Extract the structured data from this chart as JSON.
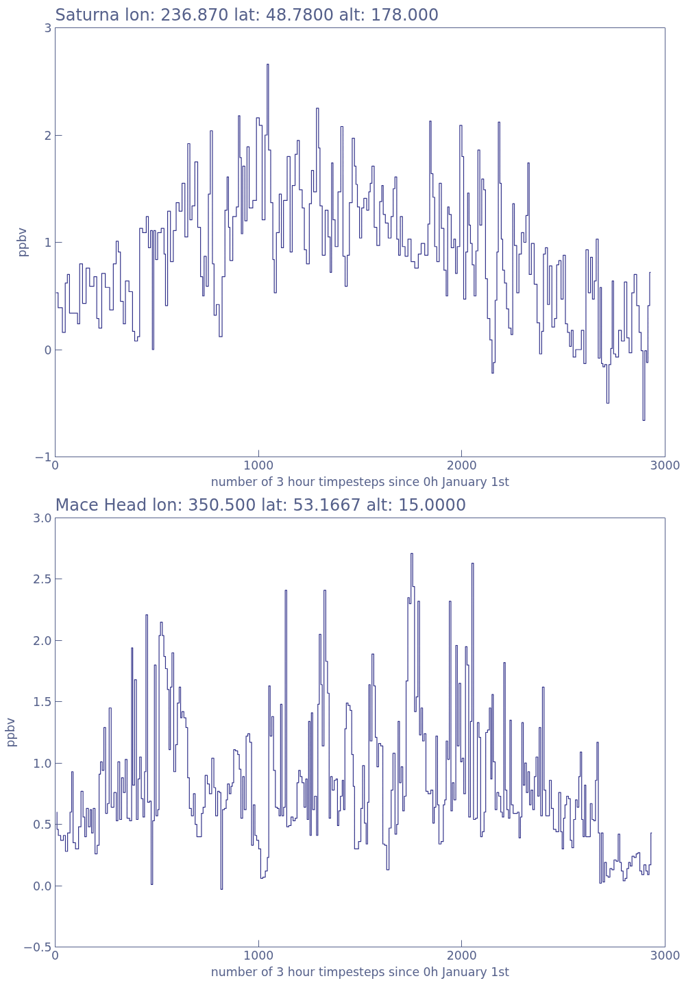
{
  "chart_data": [
    {
      "type": "step",
      "title": "Saturna  lon: 236.870  lat: 48.7800  alt: 178.000",
      "xlabel": "number of 3 hour timpesteps since 0h January 1st",
      "ylabel": "ppbv",
      "xlim": [
        0,
        3000
      ],
      "xticks": [
        0,
        1000,
        2000,
        3000
      ],
      "ylim": [
        -1,
        3
      ],
      "yticks": [
        -1,
        0,
        1,
        2,
        3
      ],
      "grid": false,
      "line_style": "solid",
      "series": [
        {
          "color": "#33338a",
          "x": [
            4,
            25,
            46,
            53,
            67,
            74,
            103,
            117,
            124,
            145,
            159,
            180,
            201,
            208,
            222,
            236,
            257,
            279,
            293,
            307,
            314,
            328,
            342,
            349,
            377,
            384,
            398,
            412,
            419,
            441,
            455,
            462,
            476,
            480,
            490,
            497,
            511,
            532,
            539,
            546,
            560,
            574,
            588,
            602,
            617,
            631,
            645,
            659,
            666,
            680,
            694,
            708,
            722,
            729,
            736,
            750,
            757,
            769,
            778,
            785,
            800,
            814,
            828,
            842,
            849,
            856,
            863,
            884,
            898,
            905,
            912,
            919,
            926,
            940,
            947,
            961,
            983,
            997,
            1011,
            1025,
            1039,
            1046,
            1053,
            1067,
            1074,
            1081,
            1095,
            1109,
            1116,
            1130,
            1152,
            1159,
            1173,
            1187,
            1194,
            1208,
            1222,
            1229,
            1243,
            1257,
            1264,
            1278,
            1292,
            1299,
            1306,
            1321,
            1335,
            1349,
            1356,
            1363,
            1370,
            1384,
            1398,
            1412,
            1419,
            1433,
            1440,
            1454,
            1468,
            1476,
            1483,
            1490,
            1504,
            1511,
            1525,
            1539,
            1546,
            1553,
            1563,
            1575,
            1589,
            1603,
            1610,
            1617,
            1631,
            1645,
            1659,
            1666,
            1676,
            1684,
            1694,
            1701,
            1715,
            1727,
            1743,
            1758,
            1779,
            1793,
            1807,
            1828,
            1839,
            1845,
            1853,
            1863,
            1870,
            1884,
            1894,
            1905,
            1919,
            1927,
            1934,
            1941,
            1955,
            1966,
            1972,
            1983,
            1997,
            2004,
            2014,
            2025,
            2032,
            2039,
            2046,
            2056,
            2065,
            2074,
            2084,
            2093,
            2103,
            2112,
            2121,
            2131,
            2145,
            2152,
            2159,
            2169,
            2176,
            2183,
            2191,
            2197,
            2205,
            2215,
            2225,
            2236,
            2248,
            2253,
            2264,
            2276,
            2286,
            2300,
            2310,
            2321,
            2328,
            2335,
            2349,
            2363,
            2377,
            2388,
            2398,
            2405,
            2417,
            2426,
            2436,
            2450,
            2462,
            2471,
            2483,
            2493,
            2504,
            2515,
            2525,
            2535,
            2542,
            2553,
            2567,
            2581,
            2595,
            2605,
            2616,
            2628,
            2638,
            2647,
            2656,
            2666,
            2676,
            2684,
            2690,
            2698,
            2708,
            2718,
            2729,
            2736,
            2743,
            2750,
            2764,
            2778,
            2792,
            2807,
            2816,
            2830,
            2842,
            2853,
            2867,
            2877,
            2887,
            2895,
            2905,
            2912,
            2919,
            2929
          ],
          "values": [
            0.53,
            0.39,
            0.16,
            0.62,
            0.7,
            0.34,
            0.34,
            0.24,
            0.8,
            0.43,
            0.76,
            0.59,
            0.68,
            0.29,
            0.2,
            0.71,
            0.58,
            0.37,
            0.8,
            1.01,
            0.91,
            0.45,
            0.24,
            0.64,
            0.54,
            0.17,
            0.08,
            0.12,
            1.13,
            1.09,
            1.24,
            0.95,
            1.11,
            0.0,
            1.11,
            0.84,
            1.09,
            1.13,
            0.89,
            0.41,
            1.29,
            0.82,
            1.11,
            1.37,
            1.29,
            1.55,
            1.05,
            1.92,
            1.21,
            1.34,
            1.75,
            1.14,
            0.68,
            0.5,
            0.87,
            0.59,
            1.45,
            2.04,
            0.8,
            0.32,
            0.42,
            0.12,
            0.68,
            1.3,
            1.61,
            1.14,
            0.83,
            1.24,
            1.33,
            2.18,
            1.79,
            1.08,
            1.71,
            1.2,
            1.89,
            1.32,
            1.39,
            2.16,
            2.09,
            1.21,
            2.0,
            2.66,
            1.86,
            1.37,
            0.84,
            0.53,
            1.09,
            1.45,
            0.95,
            1.39,
            1.8,
            0.91,
            1.53,
            1.82,
            1.95,
            1.49,
            1.32,
            0.93,
            0.8,
            1.36,
            1.67,
            1.47,
            2.25,
            1.88,
            1.34,
            0.88,
            1.3,
            1.05,
            0.72,
            1.74,
            1.21,
            0.96,
            1.47,
            2.08,
            0.87,
            0.59,
            0.88,
            1.37,
            1.97,
            1.71,
            1.54,
            1.33,
            1.04,
            1.32,
            1.41,
            1.3,
            1.47,
            1.55,
            1.71,
            1.14,
            0.97,
            1.38,
            1.53,
            1.26,
            1.18,
            1.04,
            1.24,
            1.5,
            1.61,
            1.03,
            0.88,
            1.24,
            0.96,
            0.87,
            1.03,
            0.82,
            0.76,
            0.89,
            0.99,
            0.88,
            1.17,
            2.13,
            1.64,
            1.42,
            0.96,
            0.82,
            1.55,
            1.13,
            0.74,
            0.5,
            1.33,
            1.26,
            0.95,
            1.03,
            0.71,
            0.96,
            2.09,
            1.8,
            0.47,
            0.91,
            1.46,
            1.16,
            0.99,
            0.79,
            0.5,
            0.92,
            1.86,
            1.16,
            1.59,
            1.49,
            0.66,
            0.29,
            0.09,
            -0.22,
            -0.12,
            0.46,
            0.91,
            2.12,
            1.55,
            1.03,
            0.74,
            0.62,
            0.38,
            0.2,
            0.14,
            1.36,
            0.97,
            0.53,
            0.89,
            1.09,
            1.0,
            1.25,
            1.74,
            0.7,
            0.99,
            0.61,
            0.25,
            -0.04,
            0.17,
            0.89,
            0.95,
            0.42,
            0.78,
            0.21,
            0.29,
            0.79,
            0.83,
            0.47,
            0.88,
            0.24,
            0.16,
            0.03,
            0.18,
            -0.07,
            0.0,
            0.0,
            0.18,
            -0.13,
            0.93,
            0.53,
            0.86,
            0.47,
            0.64,
            1.03,
            -0.08,
            0.58,
            -0.13,
            -0.16,
            -0.14,
            -0.5,
            -0.14,
            0.01,
            0.64,
            -0.04,
            -0.07,
            0.18,
            0.08,
            0.63,
            0.11,
            -0.03,
            0.53,
            0.7,
            0.41,
            0.16,
            -0.01,
            -0.66,
            -0.01,
            -0.12,
            0.41,
            0.72
          ]
        }
      ]
    },
    {
      "type": "step",
      "title": "Mace Head  lon: 350.500  lat: 53.1667  alt: 15.0000",
      "xlabel": "number of 3 hour timpesteps since 0h January 1st",
      "ylabel": "ppbv",
      "xlim": [
        0,
        3000
      ],
      "xticks": [
        0,
        1000,
        2000,
        3000
      ],
      "ylim": [
        -0.5,
        3
      ],
      "yticks": [
        {
          "value": -0.5,
          "label": "−0.5"
        },
        {
          "value": 0,
          "label": "0.0"
        },
        {
          "value": 0.5,
          "label": "0.5"
        },
        {
          "value": 1,
          "label": "1.0"
        },
        {
          "value": 1.5,
          "label": "1.5"
        },
        {
          "value": 2,
          "label": "2.0"
        },
        {
          "value": 2.5,
          "label": "2.5"
        },
        {
          "value": 3,
          "label": "3.0"
        }
      ],
      "grid": false,
      "line_style": "solid",
      "series": [
        {
          "color": "#33338a",
          "x": [
            7,
            11,
            20,
            34,
            47,
            54,
            68,
            78,
            84,
            92,
            108,
            122,
            132,
            142,
            149,
            158,
            169,
            176,
            182,
            192,
            200,
            213,
            219,
            227,
            236,
            243,
            253,
            261,
            270,
            281,
            297,
            304,
            313,
            322,
            331,
            340,
            349,
            358,
            374,
            378,
            385,
            396,
            403,
            412,
            419,
            428,
            436,
            443,
            450,
            459,
            469,
            475,
            484,
            492,
            500,
            509,
            513,
            523,
            531,
            538,
            547,
            557,
            563,
            571,
            578,
            588,
            597,
            605,
            615,
            619,
            628,
            638,
            648,
            655,
            665,
            675,
            685,
            692,
            702,
            716,
            723,
            732,
            743,
            754,
            763,
            777,
            784,
            794,
            804,
            811,
            819,
            827,
            838,
            844,
            851,
            862,
            867,
            875,
            881,
            892,
            903,
            908,
            919,
            925,
            935,
            943,
            952,
            962,
            970,
            979,
            986,
            996,
            1006,
            1016,
            1027,
            1040,
            1047,
            1054,
            1061,
            1070,
            1078,
            1088,
            1097,
            1105,
            1112,
            1119,
            1128,
            1135,
            1143,
            1155,
            1165,
            1175,
            1186,
            1193,
            1202,
            1209,
            1219,
            1229,
            1236,
            1243,
            1250,
            1257,
            1263,
            1270,
            1281,
            1290,
            1294,
            1304,
            1310,
            1317,
            1327,
            1335,
            1344,
            1351,
            1358,
            1367,
            1378,
            1385,
            1392,
            1398,
            1408,
            1416,
            1421,
            1429,
            1435,
            1446,
            1455,
            1462,
            1470,
            1475,
            1485,
            1499,
            1508,
            1516,
            1526,
            1533,
            1540,
            1546,
            1553,
            1563,
            1571,
            1578,
            1587,
            1594,
            1608,
            1615,
            1626,
            1635,
            1649,
            1656,
            1667,
            1676,
            1683,
            1690,
            1697,
            1706,
            1713,
            1721,
            1731,
            1738,
            1746,
            1754,
            1763,
            1772,
            1779,
            1789,
            1795,
            1804,
            1810,
            1820,
            1827,
            1841,
            1854,
            1861,
            1868,
            1877,
            1884,
            1891,
            1905,
            1913,
            1919,
            1927,
            1934,
            1943,
            1950,
            1957,
            1966,
            1975,
            1981,
            1991,
            1998,
            2005,
            2014,
            2022,
            2029,
            2039,
            2046,
            2053,
            2062,
            2073,
            2080,
            2089,
            2096,
            2105,
            2114,
            2121,
            2132,
            2139,
            2146,
            2151,
            2159,
            2169,
            2176,
            2187,
            2196,
            2203,
            2210,
            2217,
            2226,
            2233,
            2240,
            2247,
            2258,
            2269,
            2278,
            2285,
            2292,
            2299,
            2306,
            2313,
            2322,
            2329,
            2337,
            2344,
            2354,
            2360,
            2370,
            2377,
            2384,
            2392,
            2401,
            2408,
            2418,
            2426,
            2436,
            2445,
            2456,
            2470,
            2483,
            2490,
            2497,
            2504,
            2511,
            2520,
            2529,
            2538,
            2545,
            2555,
            2563,
            2572,
            2579,
            2586,
            2593,
            2600,
            2607,
            2613,
            2627,
            2637,
            2644,
            2654,
            2661,
            2668,
            2675,
            2682,
            2691,
            2698,
            2706,
            2716,
            2723,
            2734,
            2743,
            2754,
            2764,
            2774,
            2780,
            2789,
            2798,
            2808,
            2816,
            2825,
            2832,
            2842,
            2853,
            2862,
            2871,
            2880,
            2890,
            2901,
            2910,
            2917,
            2925,
            2935
          ],
          "values": [
            0.6,
            0.46,
            0.41,
            0.37,
            0.41,
            0.28,
            0.43,
            0.6,
            0.93,
            0.35,
            0.3,
            0.48,
            0.77,
            0.56,
            0.4,
            0.63,
            0.48,
            0.62,
            0.43,
            0.63,
            0.26,
            0.33,
            0.91,
            1.01,
            0.94,
            1.29,
            0.59,
            0.67,
            1.45,
            0.64,
            0.76,
            0.53,
            1.01,
            0.54,
            0.88,
            0.76,
            1.03,
            0.55,
            0.53,
            1.94,
            0.82,
            1.68,
            0.54,
            0.87,
            1.05,
            0.71,
            0.56,
            0.93,
            2.21,
            0.68,
            0.69,
            0.01,
            0.53,
            1.8,
            0.57,
            0.62,
            2.04,
            2.15,
            2.04,
            1.87,
            1.77,
            1.6,
            1.11,
            1.62,
            1.9,
            0.93,
            1.15,
            1.49,
            1.62,
            1.37,
            1.42,
            1.37,
            1.29,
            0.88,
            0.63,
            0.57,
            0.75,
            0.5,
            0.4,
            0.4,
            0.59,
            0.64,
            0.9,
            0.83,
            0.75,
            1.04,
            0.8,
            0.57,
            0.77,
            0.76,
            -0.03,
            0.62,
            0.63,
            0.7,
            0.83,
            0.75,
            0.81,
            0.84,
            1.11,
            1.1,
            1.07,
            0.95,
            0.55,
            0.89,
            0.62,
            1.22,
            1.24,
            1.17,
            0.33,
            0.66,
            0.41,
            0.37,
            0.3,
            0.06,
            0.07,
            0.12,
            0.23,
            1.63,
            1.22,
            1.38,
            0.94,
            0.64,
            0.63,
            0.57,
            1.48,
            0.57,
            0.64,
            2.41,
            0.48,
            0.49,
            0.56,
            0.53,
            0.55,
            0.84,
            0.94,
            0.89,
            0.84,
            0.64,
            0.87,
            0.54,
            1.34,
            0.41,
            1.41,
            0.62,
            0.73,
            0.41,
            1.48,
            2.05,
            1.64,
            1.14,
            2.41,
            1.83,
            1.57,
            0.55,
            0.89,
            0.78,
            0.86,
            0.87,
            0.49,
            0.61,
            0.73,
            0.86,
            0.62,
            1.28,
            1.49,
            1.47,
            1.43,
            1.07,
            0.81,
            0.3,
            0.3,
            0.36,
            0.63,
            0.98,
            0.51,
            0.34,
            0.68,
            1.64,
            1.18,
            1.89,
            1.63,
            1.21,
            0.97,
            1.16,
            1.14,
            0.34,
            0.33,
            0.13,
            0.47,
            0.78,
            1.08,
            0.42,
            0.5,
            1.34,
            0.84,
            0.97,
            0.61,
            0.73,
            1.67,
            2.35,
            2.3,
            2.71,
            2.44,
            1.42,
            1.54,
            2.32,
            1.23,
            1.45,
            1.18,
            1.24,
            0.77,
            0.75,
            0.78,
            0.51,
            0.64,
            1.22,
            0.66,
            0.34,
            0.36,
            0.66,
            0.7,
            1.18,
            1.03,
            2.32,
            0.61,
            0.84,
            0.7,
            1.96,
            1.14,
            1.65,
            1.01,
            1.04,
            0.75,
            1.95,
            1.8,
            0.56,
            1.34,
            2.63,
            0.54,
            0.55,
            1.33,
            1.21,
            0.4,
            0.44,
            0.6,
            1.25,
            1.27,
            1.45,
            0.87,
            1.56,
            1.01,
            0.62,
            0.76,
            0.73,
            0.6,
            0.56,
            1.82,
            0.78,
            0.62,
            0.55,
            1.35,
            0.66,
            0.59,
            0.59,
            0.6,
            0.39,
            0.56,
            1.33,
            0.82,
            1.0,
            0.76,
            0.93,
            0.66,
            0.78,
            0.62,
            0.89,
            1.05,
            0.73,
            1.29,
            0.57,
            1.62,
            0.78,
            0.57,
            0.57,
            0.86,
            0.63,
            0.46,
            0.44,
            0.76,
            0.44,
            0.3,
            0.55,
            0.66,
            0.73,
            0.71,
            0.37,
            0.31,
            0.54,
            0.7,
            0.64,
            0.89,
            1.09,
            0.54,
            0.4,
            0.82,
            0.4,
            0.4,
            0.67,
            0.54,
            0.53,
            0.86,
            1.17,
            0.43,
            0.02,
            0.43,
            0.03,
            0.19,
            0.08,
            0.07,
            0.14,
            0.13,
            0.21,
            0.2,
            0.42,
            0.19,
            0.12,
            0.04,
            0.06,
            0.14,
            0.19,
            0.16,
            0.24,
            0.23,
            0.26,
            0.27,
            0.12,
            0.09,
            0.17,
            0.12,
            0.09,
            0.17,
            0.43
          ]
        }
      ]
    }
  ]
}
